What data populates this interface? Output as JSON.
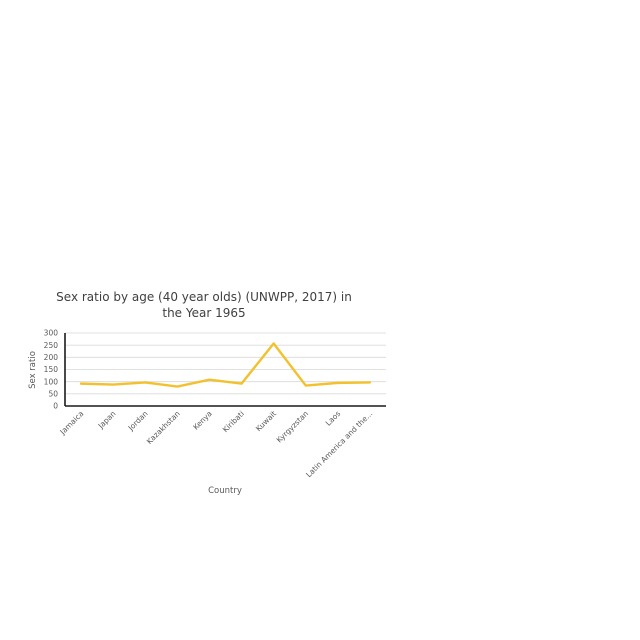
{
  "chart_data": {
    "type": "line",
    "title_line1": "Sex ratio by age (40 year olds) (UNWPP, 2017) in",
    "title_line2": "the Year 1965",
    "xlabel": "Country",
    "ylabel": "Sex ratio",
    "ylim": [
      0,
      300
    ],
    "yticks": [
      "0",
      "50",
      "100",
      "150",
      "200",
      "250",
      "300"
    ],
    "grid": true,
    "legend": "none",
    "categories": [
      "Jamaica",
      "Japan",
      "Jordan",
      "Kazakhstan",
      "Kenya",
      "Kiribati",
      "Kuwait",
      "Kyrgyzstan",
      "Laos",
      "Latin America and the..."
    ],
    "series": [
      {
        "values": [
          92,
          88,
          97,
          80,
          108,
          92,
          257,
          84,
          95,
          97
        ],
        "color": "#f2c12e"
      }
    ]
  }
}
